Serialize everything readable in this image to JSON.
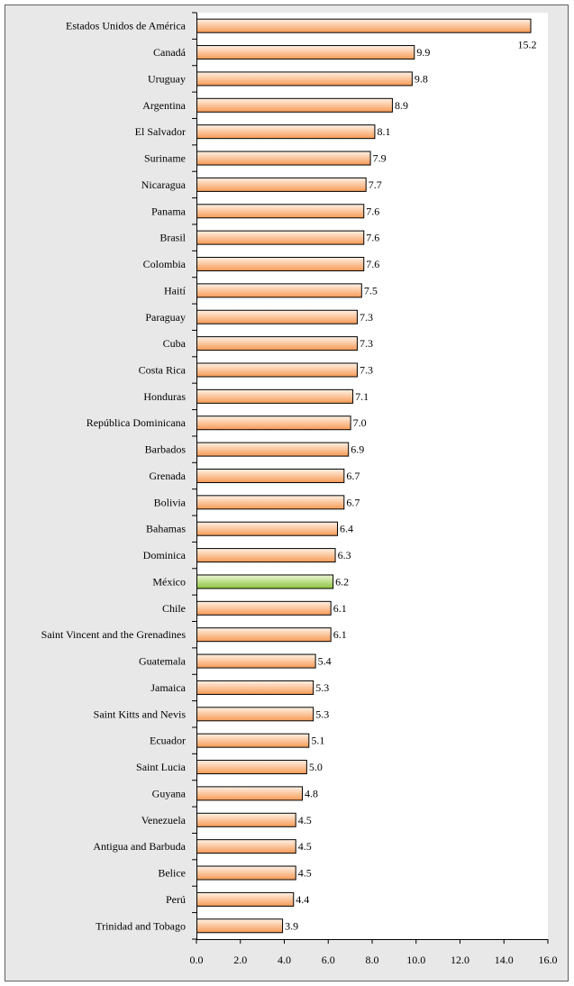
{
  "chart_data": {
    "type": "bar",
    "orientation": "horizontal",
    "categories": [
      "Estados Unidos de América",
      "Canadá",
      "Uruguay",
      "Argentina",
      "El Salvador",
      "Suriname",
      "Nicaragua",
      "Panama",
      "Brasil",
      "Colombia",
      "Haití",
      "Paraguay",
      "Cuba",
      "Costa Rica",
      "Honduras",
      "República Dominicana",
      "Barbados",
      "Grenada",
      "Bolivia",
      "Bahamas",
      "Dominica",
      "México",
      "Chile",
      "Saint Vincent and the Grenadines",
      "Guatemala",
      "Jamaica",
      "Saint Kitts and Nevis",
      "Ecuador",
      "Saint Lucia",
      "Guyana",
      "Venezuela",
      "Antigua and Barbuda",
      "Belice",
      "Perú",
      "Trinidad and Tobago"
    ],
    "values": [
      15.2,
      9.9,
      9.8,
      8.9,
      8.1,
      7.9,
      7.7,
      7.6,
      7.6,
      7.6,
      7.5,
      7.3,
      7.3,
      7.3,
      7.1,
      7.0,
      6.9,
      6.7,
      6.7,
      6.4,
      6.3,
      6.2,
      6.1,
      6.1,
      5.4,
      5.3,
      5.3,
      5.1,
      5.0,
      4.8,
      4.5,
      4.5,
      4.5,
      4.4,
      3.9
    ],
    "value_labels": [
      "15.2",
      "9.9",
      "9.8",
      "8.9",
      "8.1",
      "7.9",
      "7.7",
      "7.6",
      "7.6",
      "7.6",
      "7.5",
      "7.3",
      "7.3",
      "7.3",
      "7.1",
      "7.0",
      "6.9",
      "6.7",
      "6.7",
      "6.4",
      "6.3",
      "6.2",
      "6.1",
      "6.1",
      "5.4",
      "5.3",
      "5.3",
      "5.1",
      "5.0",
      "4.8",
      "4.5",
      "4.5",
      "4.5",
      "4.4",
      "3.9"
    ],
    "highlight": "México",
    "xlim": [
      0,
      16
    ],
    "xticks": [
      "0.0",
      "2.0",
      "4.0",
      "6.0",
      "8.0",
      "10.0",
      "12.0",
      "14.0",
      "16.0"
    ],
    "title": "",
    "xlabel": "",
    "ylabel": "",
    "grid": false,
    "colors": {
      "bar_light": "#fff2e6",
      "bar_dark": "#f79a55",
      "highlight_light": "#eef7d8",
      "highlight_dark": "#8cc43c",
      "bar_border": "#000000",
      "frame_border": "#606060",
      "frame_background": "#e8e8e8",
      "plot_background": "#ffffff"
    }
  }
}
